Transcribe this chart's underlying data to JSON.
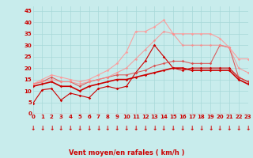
{
  "xlabel": "Vent moyen/en rafales ( km/h )",
  "bg_color": "#c8ecec",
  "grid_color": "#a8d8d8",
  "x_ticks": [
    0,
    1,
    2,
    3,
    4,
    5,
    6,
    7,
    8,
    9,
    10,
    11,
    12,
    13,
    14,
    15,
    16,
    17,
    18,
    19,
    20,
    21,
    22,
    23
  ],
  "ylim": [
    0,
    47
  ],
  "xlim": [
    0,
    23
  ],
  "yticks": [
    0,
    5,
    10,
    15,
    20,
    25,
    30,
    35,
    40,
    45
  ],
  "series": [
    {
      "x": [
        0,
        1,
        2,
        3,
        4,
        5,
        6,
        7,
        8,
        9,
        10,
        11,
        12,
        13,
        14,
        15,
        16,
        17,
        18,
        19,
        20,
        21,
        22,
        23
      ],
      "y": [
        4.5,
        10.5,
        11,
        6,
        9,
        8,
        7,
        11,
        12,
        11,
        12,
        18,
        23,
        30,
        25,
        20,
        19,
        20,
        20,
        20,
        20,
        20,
        16,
        14
      ],
      "color": "#cc0000",
      "lw": 0.8,
      "marker": "D",
      "markersize": 1.8,
      "alpha": 1.0
    },
    {
      "x": [
        0,
        1,
        2,
        3,
        4,
        5,
        6,
        7,
        8,
        9,
        10,
        11,
        12,
        13,
        14,
        15,
        16,
        17,
        18,
        19,
        20,
        21,
        22,
        23
      ],
      "y": [
        12,
        13,
        14,
        12,
        12,
        10,
        12,
        13,
        14,
        15,
        15,
        16,
        17,
        18,
        19,
        20,
        20,
        19,
        19,
        19,
        19,
        19,
        15,
        13
      ],
      "color": "#cc0000",
      "lw": 1.2,
      "marker": "D",
      "markersize": 1.8,
      "alpha": 1.0
    },
    {
      "x": [
        0,
        1,
        2,
        3,
        4,
        5,
        6,
        7,
        8,
        9,
        10,
        11,
        12,
        13,
        14,
        15,
        16,
        17,
        18,
        19,
        20,
        21,
        22,
        23
      ],
      "y": [
        13,
        14,
        16,
        14,
        14,
        12,
        14,
        15,
        16,
        17,
        17,
        18,
        19,
        21,
        22,
        23,
        23,
        22,
        22,
        22,
        30,
        29,
        16,
        14
      ],
      "color": "#dd4444",
      "lw": 0.8,
      "marker": "D",
      "markersize": 1.8,
      "alpha": 0.85
    },
    {
      "x": [
        0,
        1,
        2,
        3,
        4,
        5,
        6,
        7,
        8,
        9,
        10,
        11,
        12,
        13,
        14,
        15,
        16,
        17,
        18,
        19,
        20,
        21,
        22,
        23
      ],
      "y": [
        13,
        15,
        17,
        16,
        15,
        14,
        15,
        17,
        19,
        22,
        27,
        36,
        36,
        38,
        41,
        35,
        35,
        35,
        35,
        35,
        33,
        29,
        24,
        24
      ],
      "color": "#ff9999",
      "lw": 0.8,
      "marker": "D",
      "markersize": 1.8,
      "alpha": 0.9
    },
    {
      "x": [
        0,
        1,
        2,
        3,
        4,
        5,
        6,
        7,
        8,
        9,
        10,
        11,
        12,
        13,
        14,
        15,
        16,
        17,
        18,
        19,
        20,
        21,
        22,
        23
      ],
      "y": [
        13,
        14,
        15,
        14,
        14,
        13,
        14,
        15,
        16,
        18,
        20,
        24,
        28,
        32,
        36,
        35,
        30,
        30,
        30,
        30,
        30,
        29,
        20,
        18
      ],
      "color": "#ff8888",
      "lw": 0.8,
      "marker": "D",
      "markersize": 1.8,
      "alpha": 0.75
    }
  ],
  "arrow_color": "#cc0000",
  "tick_color": "#cc0000",
  "label_color": "#cc0000",
  "tick_fontsize": 5.0,
  "xlabel_fontsize": 6.0
}
